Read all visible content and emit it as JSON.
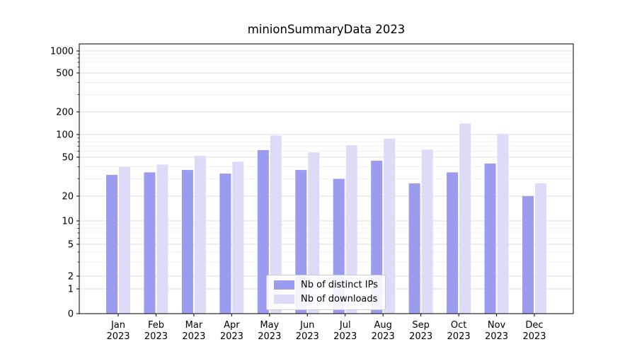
{
  "chart_data": {
    "type": "bar",
    "title": "minionSummaryData 2023",
    "categories": [
      "Jan",
      "Feb",
      "Mar",
      "Apr",
      "May",
      "Jun",
      "Jul",
      "Aug",
      "Sep",
      "Oct",
      "Nov",
      "Dec"
    ],
    "category_year": "2023",
    "series": [
      {
        "name": "Nb of distinct IPs",
        "color": "#9b9bef",
        "values": [
          33,
          35,
          37,
          34,
          62,
          37,
          30,
          46,
          27,
          35,
          43,
          20
        ]
      },
      {
        "name": "Nb of downloads",
        "color": "#dcdcf9",
        "values": [
          40,
          42,
          52,
          45,
          97,
          58,
          72,
          88,
          63,
          140,
          102,
          27
        ]
      }
    ],
    "yscale": "symlog",
    "yticks": [
      0,
      1,
      2,
      5,
      10,
      20,
      50,
      100,
      200,
      500,
      1000
    ],
    "ylim": [
      0,
      1300
    ],
    "grid": "horizontal",
    "legend_position": "lower center",
    "colors": {
      "grid_major": "#dcdcdc",
      "grid_minor": "#efefef",
      "axis": "#000000",
      "background": "#ffffff"
    }
  }
}
